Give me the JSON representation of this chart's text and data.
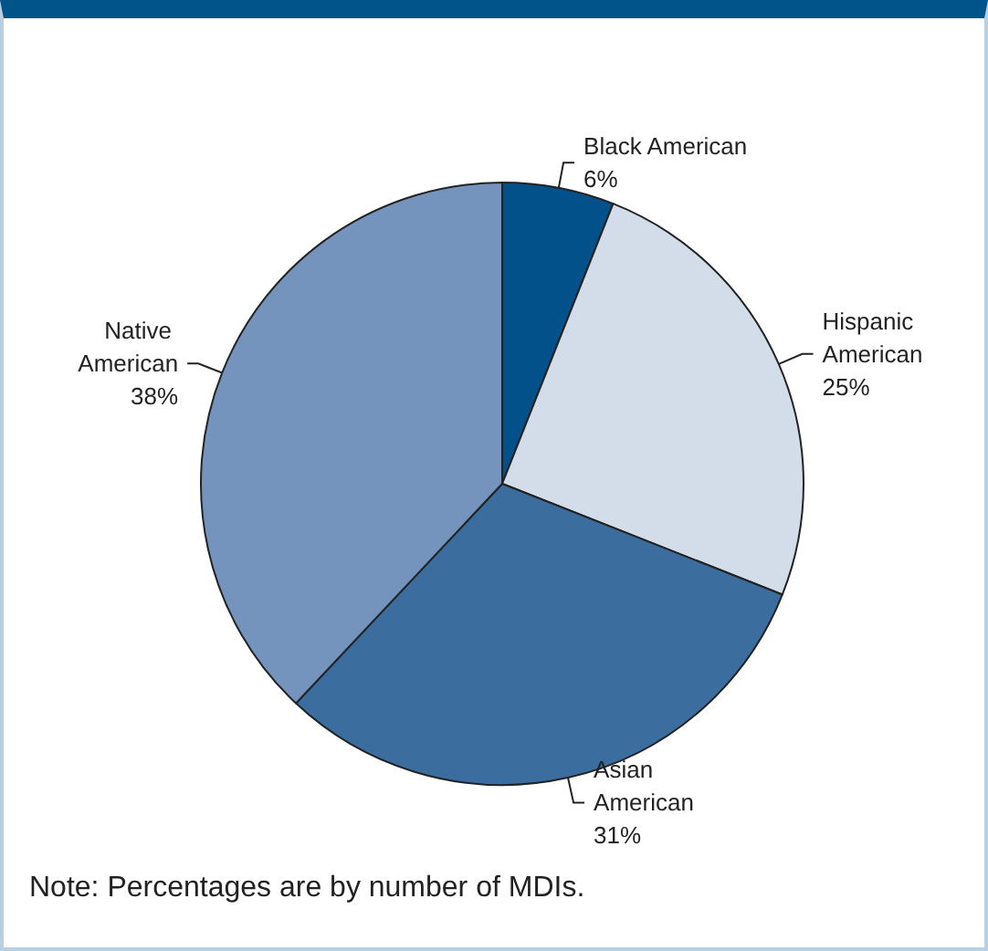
{
  "chart_data": {
    "type": "pie",
    "categories": [
      "Black American",
      "Hispanic American",
      "Asian American",
      "Native American"
    ],
    "values": [
      6,
      25,
      31,
      38
    ],
    "colors": [
      "#03518a",
      "#d3dde9",
      "#3b6e9f",
      "#7594bd"
    ],
    "value_labels": [
      "6%",
      "25%",
      "31%",
      "38%"
    ],
    "annotations": [
      "Note: Percentages are by number of MDIs."
    ]
  }
}
